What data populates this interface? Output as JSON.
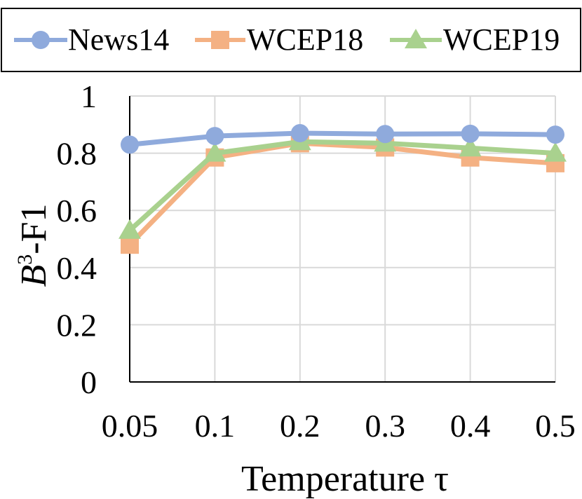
{
  "colors": {
    "News14": "#8faadc",
    "WCEP18": "#f4b183",
    "WCEP19": "#a9d18e",
    "grid": "#d9d9d9",
    "axis": "#000000"
  },
  "chart_data": {
    "type": "line",
    "categories": [
      "0.05",
      "0.1",
      "0.2",
      "0.3",
      "0.4",
      "0.5"
    ],
    "series": [
      {
        "name": "News14",
        "marker": "circle",
        "values": [
          0.83,
          0.86,
          0.87,
          0.867,
          0.868,
          0.865
        ]
      },
      {
        "name": "WCEP18",
        "marker": "square",
        "values": [
          0.48,
          0.785,
          0.835,
          0.82,
          0.785,
          0.765
        ]
      },
      {
        "name": "WCEP19",
        "marker": "triangle",
        "values": [
          0.53,
          0.8,
          0.84,
          0.835,
          0.818,
          0.8
        ]
      }
    ],
    "xlabel": "Temperature τ",
    "ylabel_italic": "B",
    "ylabel_sup": "3",
    "ylabel_rest": "-F1",
    "ylim": [
      0,
      1
    ],
    "yticks": [
      "0",
      "0.2",
      "0.4",
      "0.6",
      "0.8",
      "1"
    ],
    "grid": true,
    "legend": {
      "position": "top",
      "labels": [
        "News14",
        "WCEP18",
        "WCEP19"
      ]
    }
  }
}
